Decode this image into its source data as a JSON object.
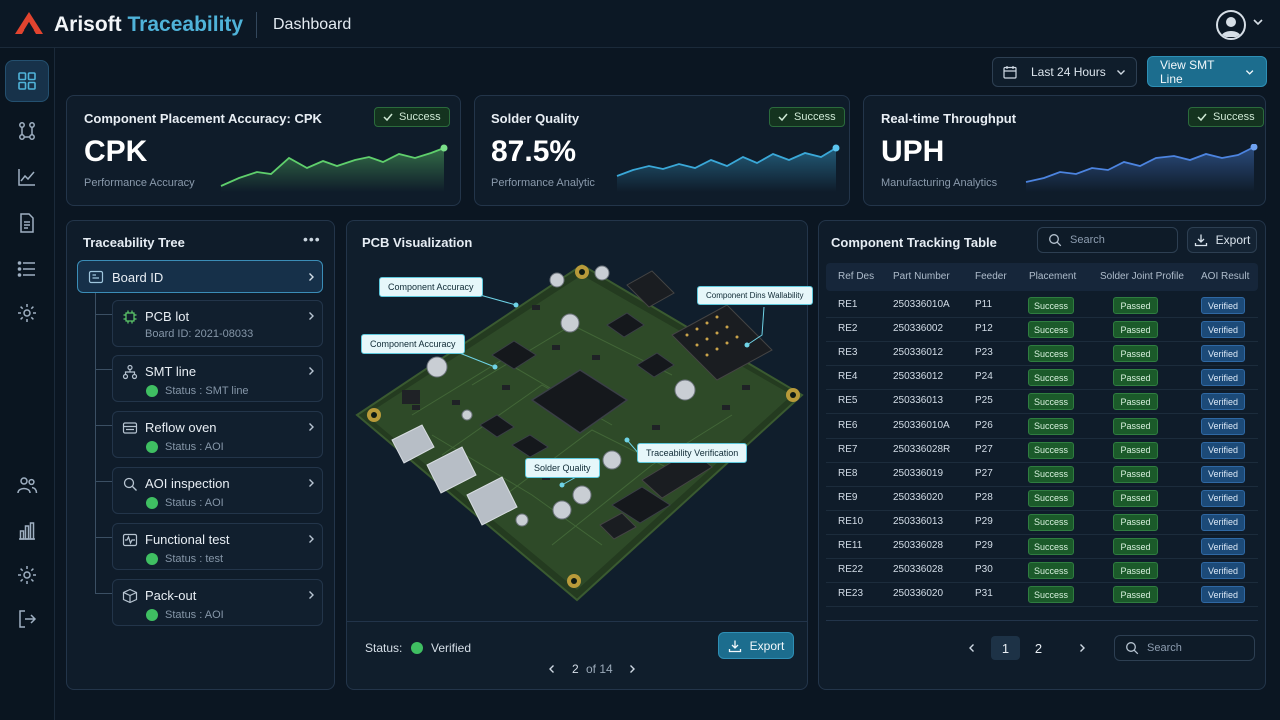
{
  "app": {
    "brand_main": "Arisoft",
    "brand_accent": "Traceability",
    "page_title": "Dashboard"
  },
  "controls": {
    "range_label": "Last 24 Hours",
    "view_label": "View SMT Line"
  },
  "kpis": [
    {
      "title": "Component Placement Accuracy: CPK",
      "value": "CPK",
      "sub": "Performance Accuracy",
      "badge": "Success",
      "color": "#5fcf6c"
    },
    {
      "title": "Solder Quality",
      "value": "87.5%",
      "sub": "Performance Analytic",
      "badge": "Success",
      "color": "#3aa8d8"
    },
    {
      "title": "Real-time Throughput",
      "value": "UPH",
      "sub": "Manufacturing Analytics",
      "badge": "Success",
      "color": "#4c84e0"
    }
  ],
  "tree": {
    "title": "Traceability Tree",
    "menu": "•••",
    "root": "Board ID",
    "nodes": [
      {
        "label": "PCB lot",
        "sub": "Board ID: 2021-08033",
        "icon": "chip-icon"
      },
      {
        "label": "SMT line",
        "sub": "Status : SMT line",
        "icon": "network-icon"
      },
      {
        "label": "Reflow oven",
        "sub": "Status : AOI",
        "icon": "oven-icon"
      },
      {
        "label": "AOI inspection",
        "sub": "Status : AOI",
        "icon": "magnifier-icon"
      },
      {
        "label": "Functional test",
        "sub": "Status : test",
        "icon": "waveform-icon"
      },
      {
        "label": "Pack-out",
        "sub": "Status : AOI",
        "icon": "box-icon"
      }
    ]
  },
  "pcb": {
    "title": "PCB Visualization",
    "callouts": [
      "Component Accuracy",
      "Component Dins Wallability",
      "Component Accuracy",
      "Solder Quality",
      "Traceability Verification"
    ],
    "status_label": "Status:",
    "status_value": "Verified",
    "export_label": "Export",
    "page": "2",
    "page_of": "of 14"
  },
  "table": {
    "title": "Component Tracking Table",
    "search_placeholder": "Search",
    "export_label": "Export",
    "headers": [
      "Ref Des",
      "Part Number",
      "Feeder",
      "Placement",
      "Solder Joint Profile",
      "AOI Result"
    ],
    "rows": [
      [
        "RE1",
        "250336010A",
        "P11",
        "Success",
        "Passed",
        "Verified"
      ],
      [
        "RE2",
        "250336002",
        "P12",
        "Success",
        "Passed",
        "Verified"
      ],
      [
        "RE3",
        "250336012",
        "P23",
        "Success",
        "Passed",
        "Verified"
      ],
      [
        "RE4",
        "250336012",
        "P24",
        "Success",
        "Passed",
        "Verified"
      ],
      [
        "RE5",
        "250336013",
        "P25",
        "Success",
        "Passed",
        "Verified"
      ],
      [
        "RE6",
        "250336010A",
        "P26",
        "Success",
        "Passed",
        "Verified"
      ],
      [
        "RE7",
        "250336028R",
        "P27",
        "Success",
        "Passed",
        "Verified"
      ],
      [
        "RE8",
        "250336019",
        "P27",
        "Success",
        "Passed",
        "Verified"
      ],
      [
        "RE9",
        "250336020",
        "P28",
        "Success",
        "Passed",
        "Verified"
      ],
      [
        "RE10",
        "250336013",
        "P29",
        "Success",
        "Passed",
        "Verified"
      ],
      [
        "RE11",
        "250336028",
        "P29",
        "Success",
        "Passed",
        "Verified"
      ],
      [
        "RE22",
        "250336028",
        "P30",
        "Success",
        "Passed",
        "Verified"
      ],
      [
        "RE23",
        "250336020",
        "P31",
        "Success",
        "Passed",
        "Verified"
      ]
    ],
    "pages": [
      "1",
      "2"
    ],
    "bottom_search_placeholder": "Search"
  }
}
